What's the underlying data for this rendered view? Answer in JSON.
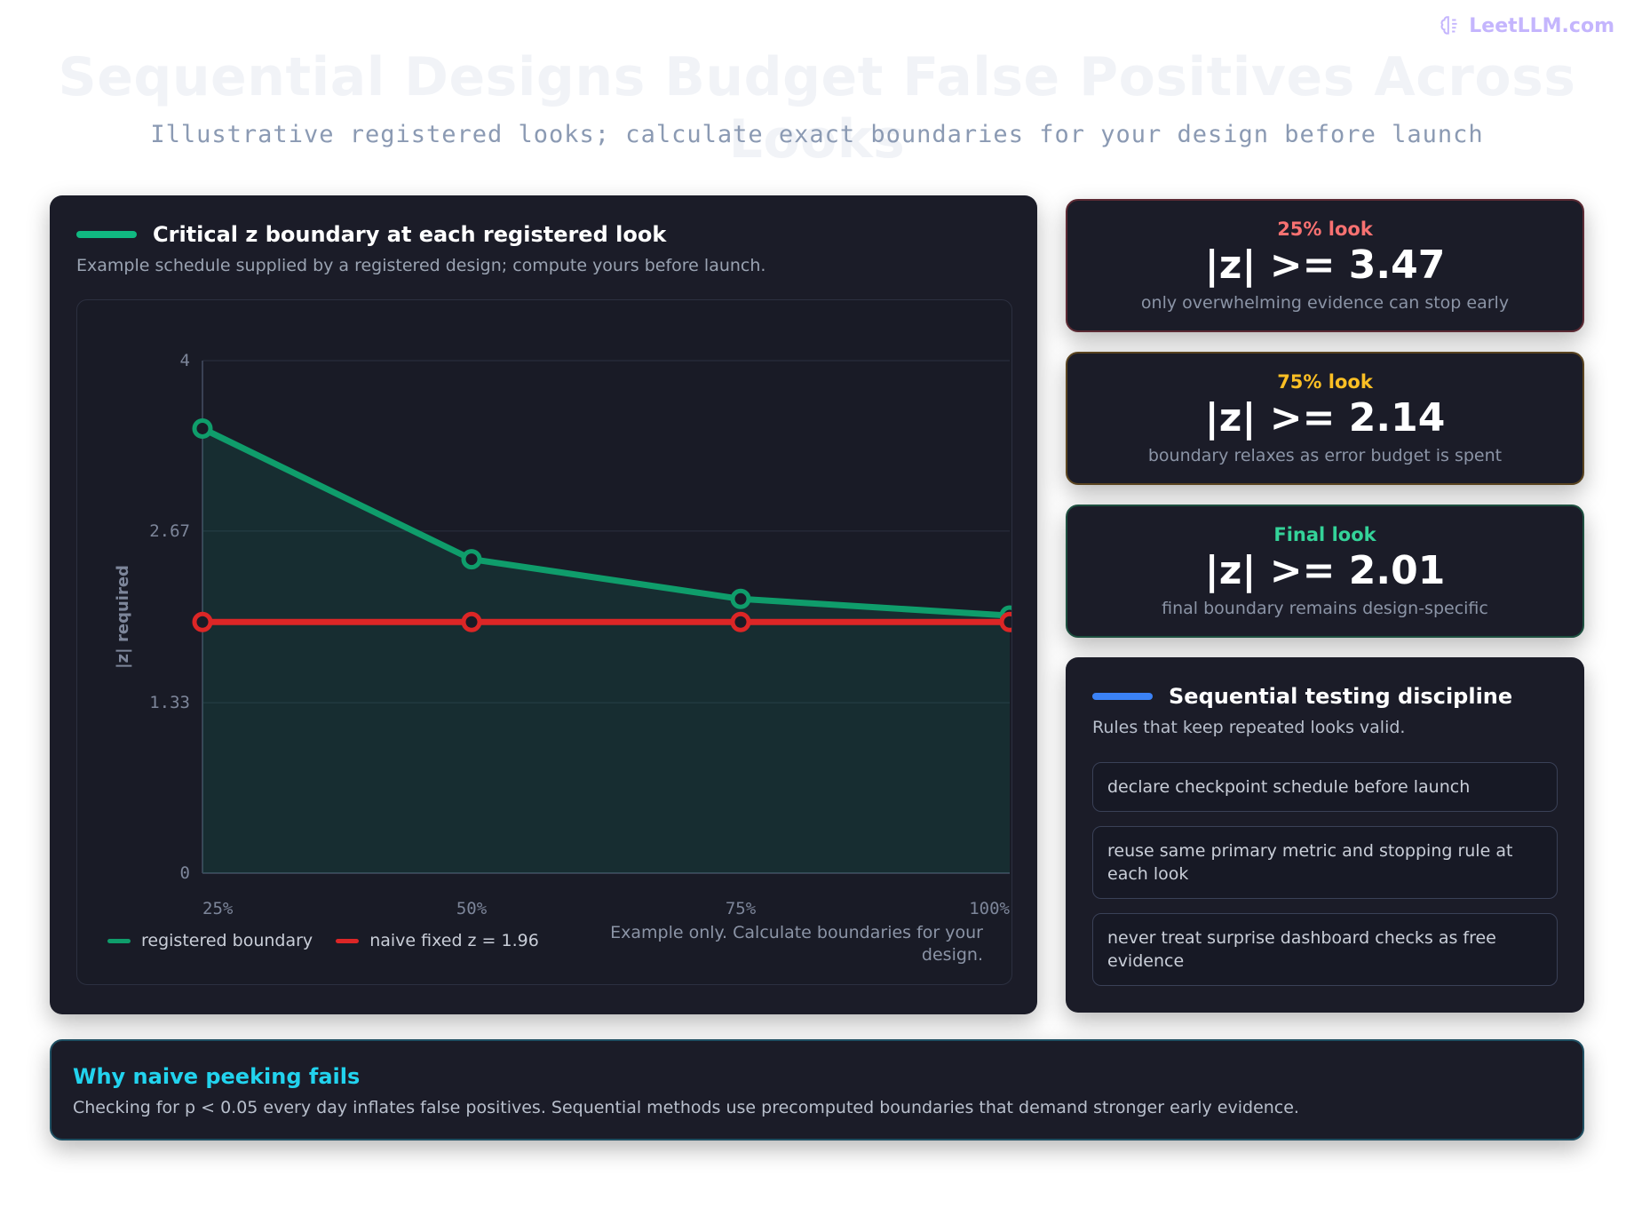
{
  "brand": {
    "name": "LeetLLM.com",
    "icon": "brain-icon"
  },
  "header": {
    "title": "Sequential Designs Budget False Positives Across Looks",
    "subtitle": "Illustrative registered looks; calculate exact boundaries for your design before launch"
  },
  "chart_panel": {
    "title": "Critical z boundary at each registered look",
    "subtitle": "Example schedule supplied by a registered design; compute yours before launch.",
    "accent_color": "#10b981",
    "note": "Example only. Calculate boundaries for your design."
  },
  "chart_data": {
    "type": "line",
    "x": [
      "25%",
      "50%",
      "75%",
      "100%"
    ],
    "ylabel": "|z| required",
    "xlabel": "",
    "ylim": [
      0,
      4
    ],
    "yticks": [
      "0",
      "1.33",
      "2.67",
      "4"
    ],
    "grid": true,
    "legend_position": "bottom-left",
    "series": [
      {
        "name": "registered boundary",
        "values": [
          3.47,
          2.45,
          2.14,
          2.01
        ],
        "color": "#0f9d6b",
        "fill": true
      },
      {
        "name": "naive fixed z = 1.96",
        "values": [
          1.96,
          1.96,
          1.96,
          1.96
        ],
        "color": "#dc2626",
        "fill": false
      }
    ]
  },
  "stats": [
    {
      "label": "25% look",
      "value": "|z| >= 3.47",
      "desc": "only overwhelming evidence can stop early",
      "color": "#f87171",
      "border": "#5c2a34"
    },
    {
      "label": "75% look",
      "value": "|z| >= 2.14",
      "desc": "boundary relaxes as error budget is spent",
      "color": "#fbbf24",
      "border": "#5a4420"
    },
    {
      "label": "Final look",
      "value": "|z| >= 2.01",
      "desc": "final boundary remains design-specific",
      "color": "#34d399",
      "border": "#1d4f3f"
    }
  ],
  "rules": {
    "title": "Sequential testing discipline",
    "subtitle": "Rules that keep repeated looks valid.",
    "accent_color": "#3b82f6",
    "items": [
      "declare checkpoint schedule before launch",
      "reuse same primary metric and stopping rule at each look",
      "never treat surprise dashboard checks as free evidence"
    ]
  },
  "why": {
    "title": "Why naive peeking fails",
    "body": "Checking for p < 0.05 every day inflates false positives. Sequential methods use precomputed boundaries that demand stronger early evidence."
  }
}
